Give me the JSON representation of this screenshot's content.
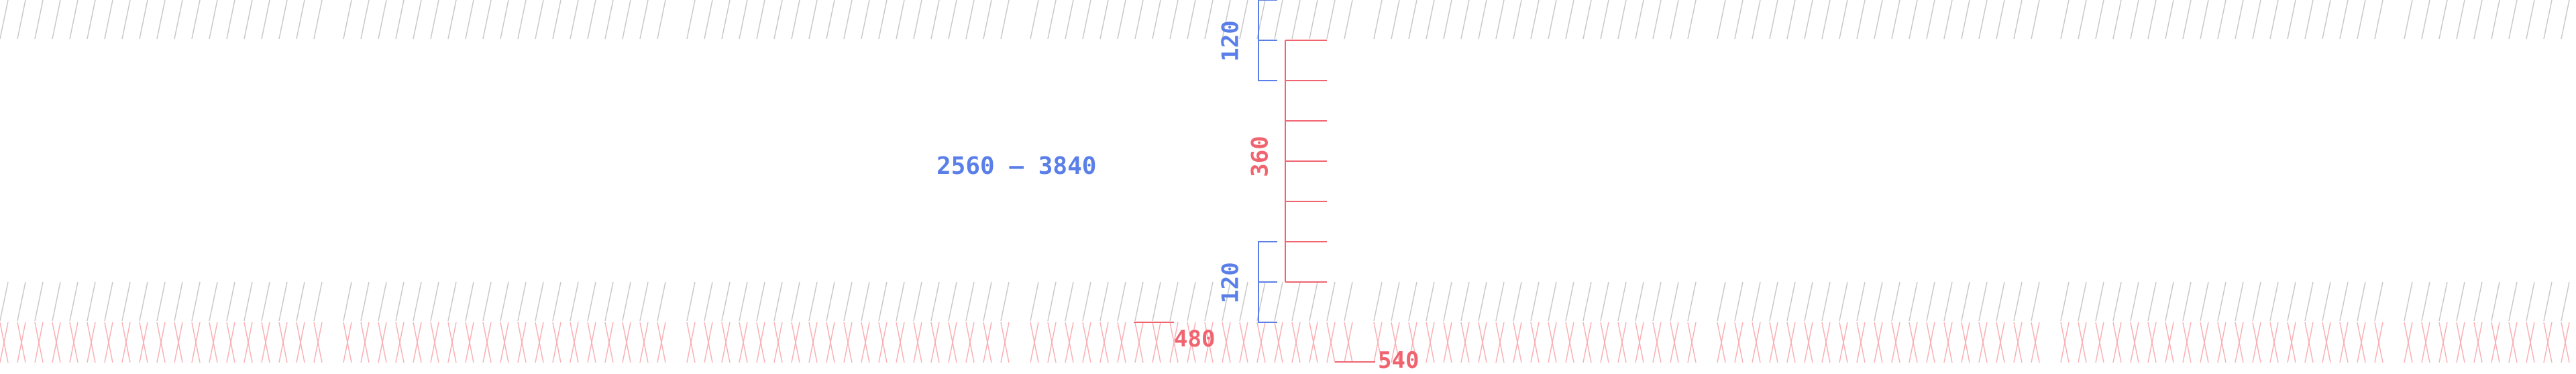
{
  "range_label": "2560 – 3840",
  "dimensions": {
    "top_band": "120",
    "middle_band": "360",
    "bottom_band": "120",
    "strip_480": "480",
    "strip_540": "540"
  },
  "colors": {
    "blue": "#5b7fe8",
    "red": "#f06470",
    "hatch_gray": "#c8c8c8",
    "hatch_pink": "#f8b0b4",
    "background": "#ffffff"
  }
}
